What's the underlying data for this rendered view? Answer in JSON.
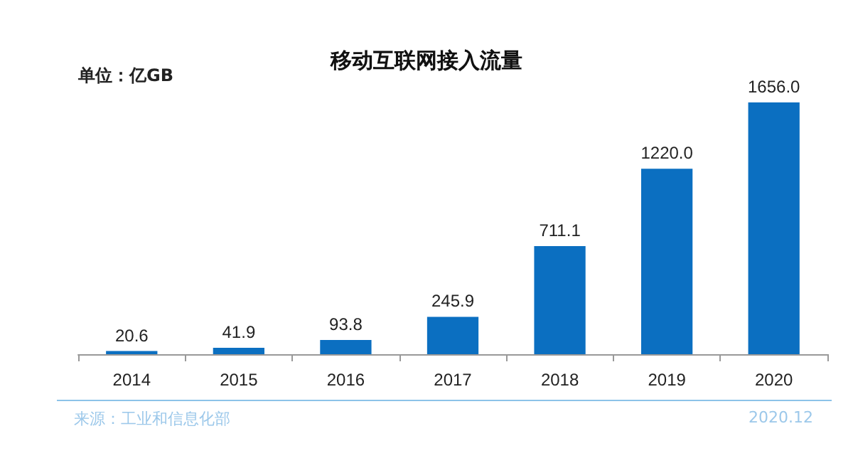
{
  "chart_data": {
    "type": "bar",
    "title": "移动互联网接入流量",
    "ylabel": "单位：亿GB",
    "categories": [
      "2014",
      "2015",
      "2016",
      "2017",
      "2018",
      "2019",
      "2020"
    ],
    "values": [
      20.6,
      41.9,
      93.8,
      245.9,
      711.1,
      1220.0,
      1656.0
    ],
    "value_labels": [
      "20.6",
      "41.9",
      "93.8",
      "245.9",
      "711.1",
      "1220.0",
      "1656.0"
    ],
    "color": "#0b6fc1",
    "annotations": [
      "来源：工业和信息化部",
      "2020.12"
    ]
  }
}
